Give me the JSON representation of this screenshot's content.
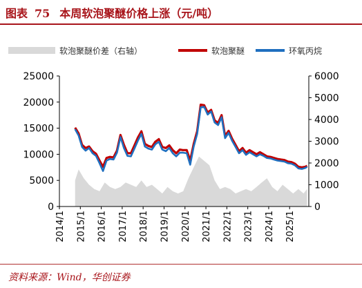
{
  "header": {
    "figure_label": "图表",
    "figure_number": "75",
    "title_text": "本周软泡聚醚价格上涨（元/吨）"
  },
  "footer": {
    "source": "资料来源：Wind，华创证券"
  },
  "colors": {
    "title": "#a8141a",
    "spread": "#d9d9d9",
    "polyether": "#c00000",
    "propylene_oxide": "#1f6fbf"
  },
  "chart_data": {
    "type": "line",
    "title": "本周软泡聚醚价格上涨（元/吨）",
    "x_range": [
      "2014-01",
      "2025-12"
    ],
    "x_ticks": [
      "2014/1",
      "2015/1",
      "2016/1",
      "2017/1",
      "2018/1",
      "2019/1",
      "2020/1",
      "2021/1",
      "2022/1",
      "2023/1",
      "2024/1",
      "2025/1"
    ],
    "ylim_left": [
      0,
      25000
    ],
    "yticks_left": [
      0,
      5000,
      10000,
      15000,
      20000,
      25000
    ],
    "ylim_right": [
      0,
      6000
    ],
    "yticks_right": [
      0,
      1000,
      2000,
      3000,
      4000,
      5000,
      6000
    ],
    "legend_position": "top",
    "grid": false,
    "series": [
      {
        "name": "软泡聚醚价差（右轴）",
        "axis": "right",
        "kind": "area",
        "points": [
          [
            "2014-10",
            1200
          ],
          [
            "2014-12",
            1700
          ],
          [
            "2015-03",
            1300
          ],
          [
            "2015-06",
            1000
          ],
          [
            "2015-09",
            800
          ],
          [
            "2015-12",
            700
          ],
          [
            "2016-03",
            1100
          ],
          [
            "2016-06",
            900
          ],
          [
            "2016-09",
            800
          ],
          [
            "2016-12",
            900
          ],
          [
            "2017-03",
            1100
          ],
          [
            "2017-06",
            1000
          ],
          [
            "2017-09",
            900
          ],
          [
            "2017-12",
            1200
          ],
          [
            "2018-03",
            900
          ],
          [
            "2018-06",
            1000
          ],
          [
            "2018-09",
            800
          ],
          [
            "2018-12",
            600
          ],
          [
            "2019-03",
            900
          ],
          [
            "2019-06",
            700
          ],
          [
            "2019-09",
            600
          ],
          [
            "2019-12",
            700
          ],
          [
            "2020-03",
            1300
          ],
          [
            "2020-06",
            1800
          ],
          [
            "2020-09",
            2300
          ],
          [
            "2020-12",
            2100
          ],
          [
            "2021-03",
            1900
          ],
          [
            "2021-06",
            1200
          ],
          [
            "2021-09",
            800
          ],
          [
            "2021-12",
            900
          ],
          [
            "2022-03",
            800
          ],
          [
            "2022-06",
            600
          ],
          [
            "2022-09",
            700
          ],
          [
            "2022-12",
            800
          ],
          [
            "2023-03",
            700
          ],
          [
            "2023-06",
            900
          ],
          [
            "2023-09",
            1100
          ],
          [
            "2023-12",
            1300
          ],
          [
            "2024-03",
            900
          ],
          [
            "2024-06",
            700
          ],
          [
            "2024-09",
            1000
          ],
          [
            "2024-12",
            800
          ],
          [
            "2025-03",
            600
          ],
          [
            "2025-06",
            800
          ],
          [
            "2025-09",
            600
          ],
          [
            "2025-11",
            800
          ]
        ]
      },
      {
        "name": "软泡聚醚",
        "axis": "left",
        "kind": "line",
        "points": [
          [
            "2014-10",
            15100
          ],
          [
            "2014-12",
            14000
          ],
          [
            "2015-02",
            11800
          ],
          [
            "2015-04",
            11200
          ],
          [
            "2015-06",
            11500
          ],
          [
            "2015-08",
            10600
          ],
          [
            "2015-10",
            10100
          ],
          [
            "2015-12",
            8800
          ],
          [
            "2016-02",
            7600
          ],
          [
            "2016-04",
            9300
          ],
          [
            "2016-06",
            9500
          ],
          [
            "2016-08",
            9400
          ],
          [
            "2016-10",
            10700
          ],
          [
            "2016-12",
            13700
          ],
          [
            "2017-02",
            11800
          ],
          [
            "2017-04",
            10200
          ],
          [
            "2017-06",
            10200
          ],
          [
            "2017-08",
            11700
          ],
          [
            "2017-10",
            13200
          ],
          [
            "2017-12",
            14400
          ],
          [
            "2018-02",
            12000
          ],
          [
            "2018-04",
            11600
          ],
          [
            "2018-06",
            11400
          ],
          [
            "2018-08",
            12400
          ],
          [
            "2018-10",
            12900
          ],
          [
            "2018-12",
            11400
          ],
          [
            "2019-02",
            11200
          ],
          [
            "2019-04",
            11700
          ],
          [
            "2019-06",
            10800
          ],
          [
            "2019-08",
            10200
          ],
          [
            "2019-10",
            10900
          ],
          [
            "2019-12",
            10800
          ],
          [
            "2020-02",
            10800
          ],
          [
            "2020-04",
            8800
          ],
          [
            "2020-06",
            12000
          ],
          [
            "2020-08",
            14400
          ],
          [
            "2020-10",
            19500
          ],
          [
            "2020-12",
            19400
          ],
          [
            "2021-02",
            18000
          ],
          [
            "2021-04",
            18500
          ],
          [
            "2021-06",
            16500
          ],
          [
            "2021-08",
            16000
          ],
          [
            "2021-10",
            17500
          ],
          [
            "2021-12",
            13500
          ],
          [
            "2022-02",
            14500
          ],
          [
            "2022-04",
            13000
          ],
          [
            "2022-06",
            11800
          ],
          [
            "2022-08",
            10600
          ],
          [
            "2022-10",
            11200
          ],
          [
            "2022-12",
            10300
          ],
          [
            "2023-02",
            10800
          ],
          [
            "2023-04",
            10400
          ],
          [
            "2023-06",
            10000
          ],
          [
            "2023-08",
            10400
          ],
          [
            "2023-10",
            10000
          ],
          [
            "2023-12",
            9600
          ],
          [
            "2024-02",
            9500
          ],
          [
            "2024-04",
            9300
          ],
          [
            "2024-06",
            9100
          ],
          [
            "2024-08",
            9000
          ],
          [
            "2024-10",
            8900
          ],
          [
            "2024-12",
            8600
          ],
          [
            "2025-02",
            8500
          ],
          [
            "2025-04",
            8200
          ],
          [
            "2025-06",
            7600
          ],
          [
            "2025-08",
            7500
          ],
          [
            "2025-10",
            7600
          ],
          [
            "2025-11",
            7800
          ]
        ]
      },
      {
        "name": "环氧丙烷",
        "axis": "left",
        "kind": "line",
        "points": [
          [
            "2014-10",
            14800
          ],
          [
            "2014-12",
            13600
          ],
          [
            "2015-02",
            11400
          ],
          [
            "2015-04",
            10700
          ],
          [
            "2015-06",
            11200
          ],
          [
            "2015-08",
            10200
          ],
          [
            "2015-10",
            9700
          ],
          [
            "2015-12",
            8300
          ],
          [
            "2016-02",
            6800
          ],
          [
            "2016-04",
            8800
          ],
          [
            "2016-06",
            9100
          ],
          [
            "2016-08",
            9000
          ],
          [
            "2016-10",
            10300
          ],
          [
            "2016-12",
            13300
          ],
          [
            "2017-02",
            11200
          ],
          [
            "2017-04",
            9700
          ],
          [
            "2017-06",
            9600
          ],
          [
            "2017-08",
            11100
          ],
          [
            "2017-10",
            12600
          ],
          [
            "2017-12",
            13900
          ],
          [
            "2018-02",
            11500
          ],
          [
            "2018-04",
            11100
          ],
          [
            "2018-06",
            10900
          ],
          [
            "2018-08",
            11900
          ],
          [
            "2018-10",
            12400
          ],
          [
            "2018-12",
            10900
          ],
          [
            "2019-02",
            10600
          ],
          [
            "2019-04",
            11200
          ],
          [
            "2019-06",
            10200
          ],
          [
            "2019-08",
            9600
          ],
          [
            "2019-10",
            10300
          ],
          [
            "2019-12",
            10300
          ],
          [
            "2020-02",
            10200
          ],
          [
            "2020-04",
            8000
          ],
          [
            "2020-06",
            11500
          ],
          [
            "2020-08",
            13900
          ],
          [
            "2020-10",
            19000
          ],
          [
            "2020-12",
            19100
          ],
          [
            "2021-02",
            17600
          ],
          [
            "2021-04",
            18200
          ],
          [
            "2021-06",
            16100
          ],
          [
            "2021-08",
            15600
          ],
          [
            "2021-10",
            17100
          ],
          [
            "2021-12",
            13100
          ],
          [
            "2022-02",
            14100
          ],
          [
            "2022-04",
            12600
          ],
          [
            "2022-06",
            11400
          ],
          [
            "2022-08",
            10200
          ],
          [
            "2022-10",
            10800
          ],
          [
            "2022-12",
            9900
          ],
          [
            "2023-02",
            10400
          ],
          [
            "2023-04",
            10000
          ],
          [
            "2023-06",
            9600
          ],
          [
            "2023-08",
            10000
          ],
          [
            "2023-10",
            9700
          ],
          [
            "2023-12",
            9300
          ],
          [
            "2024-02",
            9200
          ],
          [
            "2024-04",
            9000
          ],
          [
            "2024-06",
            8800
          ],
          [
            "2024-08",
            8700
          ],
          [
            "2024-10",
            8600
          ],
          [
            "2024-12",
            8300
          ],
          [
            "2025-02",
            8200
          ],
          [
            "2025-04",
            7900
          ],
          [
            "2025-06",
            7300
          ],
          [
            "2025-08",
            7200
          ],
          [
            "2025-10",
            7400
          ],
          [
            "2025-11",
            7600
          ]
        ]
      }
    ]
  }
}
